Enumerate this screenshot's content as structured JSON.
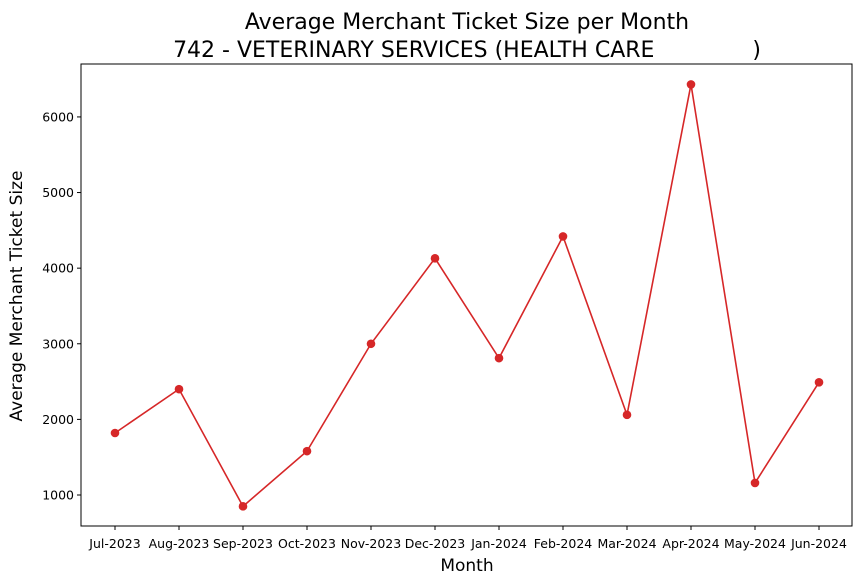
{
  "chart_data": {
    "type": "line",
    "title": "Average Merchant Ticket Size per Month",
    "subtitle": "742 - VETERINARY SERVICES (HEALTH CARE              )",
    "xlabel": "Month",
    "ylabel": "Average Merchant Ticket Size",
    "categories": [
      "Jul-2023",
      "Aug-2023",
      "Sep-2023",
      "Oct-2023",
      "Nov-2023",
      "Dec-2023",
      "Jan-2024",
      "Feb-2024",
      "Mar-2024",
      "Apr-2024",
      "May-2024",
      "Jun-2024"
    ],
    "series": [
      {
        "values": [
          1820,
          2400,
          850,
          1580,
          3000,
          4130,
          2810,
          4420,
          2060,
          6430,
          1160,
          2490
        ],
        "color": "#d62728",
        "marker": "circle"
      }
    ],
    "ylim": [
      590,
      6700
    ],
    "yticks": [
      1000,
      2000,
      3000,
      4000,
      5000,
      6000
    ],
    "grid": false,
    "legend": "none"
  }
}
